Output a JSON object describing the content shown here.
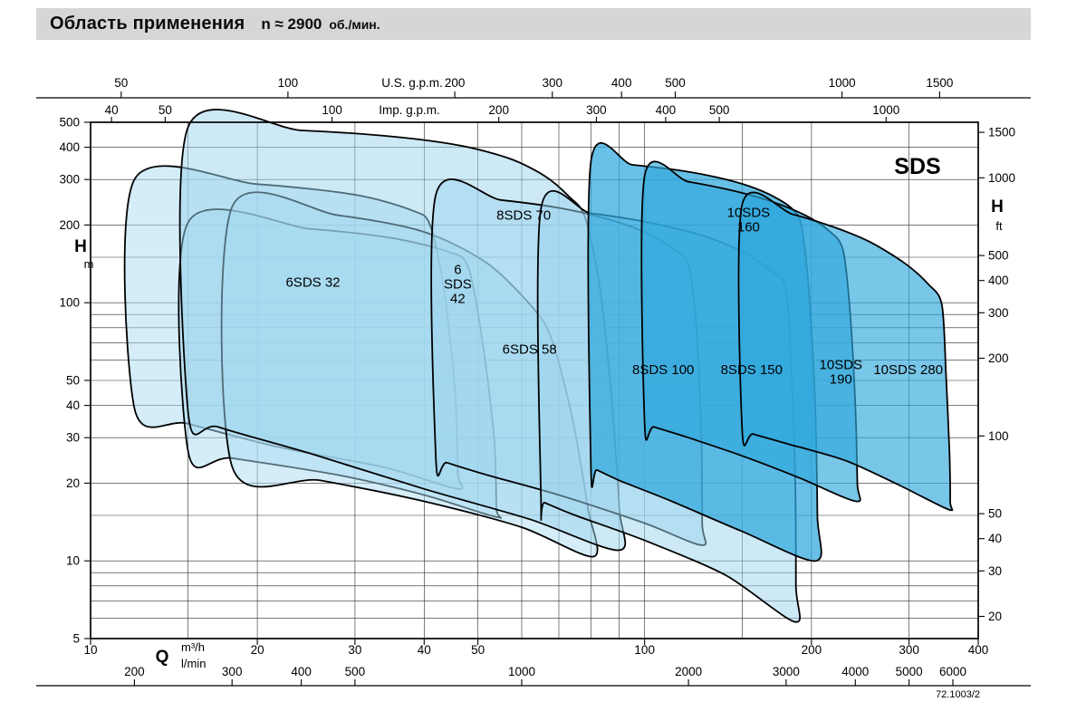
{
  "header": {
    "title": "Область применения",
    "speed": "n ≈ 2900",
    "unit": "об./мин."
  },
  "footer": {
    "note": "72.1003/2"
  },
  "chart_data": {
    "type": "area",
    "title": "Область применения SDS, n ≈ 2900 об./мин.",
    "family_label": "SDS",
    "scale": "log-log",
    "outline_color": "#000000",
    "x_axis": {
      "quantity": "Q",
      "primary_unit": "m³/h",
      "secondary_unit": "l/min",
      "range_m3h": [
        10,
        400
      ],
      "ticks_m3h": [
        10,
        20,
        30,
        40,
        50,
        100,
        200,
        300,
        400
      ],
      "ticks_lmin": [
        200,
        300,
        400,
        500,
        1000,
        2000,
        3000,
        4000,
        5000,
        6000
      ],
      "top_scales": {
        "us_gpm": {
          "title": "U.S. g.p.m.",
          "ticks": [
            50,
            100,
            200,
            300,
            400,
            500,
            1000,
            1500
          ]
        },
        "imp_gpm": {
          "title": "Imp. g.p.m.",
          "ticks": [
            40,
            50,
            100,
            200,
            300,
            400,
            500,
            1000
          ]
        }
      }
    },
    "y_axis": {
      "quantity": "H",
      "primary_unit": "m",
      "secondary_unit": "ft",
      "range_m": [
        5,
        500
      ],
      "ticks_m": [
        5,
        10,
        20,
        30,
        40,
        50,
        100,
        200,
        300,
        400,
        500
      ],
      "ticks_ft": [
        20,
        30,
        40,
        50,
        100,
        200,
        300,
        400,
        500,
        1000,
        1500
      ]
    },
    "grid": {
      "q_lines": [
        10,
        15,
        20,
        30,
        40,
        50,
        60,
        70,
        80,
        90,
        100,
        150,
        200,
        300,
        400
      ],
      "h_lines": [
        5,
        6,
        7,
        8,
        9,
        10,
        15,
        20,
        30,
        40,
        50,
        60,
        70,
        80,
        90,
        100,
        150,
        200,
        300,
        400,
        500
      ]
    },
    "envelopes": [
      {
        "name": "6SDS 32",
        "label_lines": [
          "6SDS 32"
        ],
        "label_q": 25.2,
        "label_h": 120,
        "fill": "#a9dbf1",
        "fill_opacity": 0.5,
        "points": [
          [
            12,
            300
          ],
          [
            20,
            288
          ],
          [
            30,
            262
          ],
          [
            38,
            228
          ],
          [
            41,
            200
          ],
          [
            43.5,
            110
          ],
          [
            45.5,
            45
          ],
          [
            46,
            22
          ],
          [
            46,
            19
          ],
          [
            34,
            23
          ],
          [
            22,
            27.5
          ],
          [
            15,
            34
          ],
          [
            12,
            39
          ]
        ]
      },
      {
        "name": "6SDS 42",
        "label_lines": [
          "6",
          "SDS",
          "42"
        ],
        "label_q": 46,
        "label_h": 118,
        "fill": "#a9dbf1",
        "fill_opacity": 0.5,
        "points": [
          [
            15,
            205
          ],
          [
            25,
            193
          ],
          [
            35,
            178
          ],
          [
            44,
            158
          ],
          [
            48,
            138
          ],
          [
            51,
            70
          ],
          [
            53.5,
            30
          ],
          [
            54,
            16
          ],
          [
            54,
            14.8
          ],
          [
            40,
            18
          ],
          [
            28,
            21.5
          ],
          [
            18,
            25
          ],
          [
            15,
            26.5
          ]
        ]
      },
      {
        "name": "6SDS 58",
        "label_lines": [
          "6SDS 58"
        ],
        "label_q": 62,
        "label_h": 66,
        "fill": "#a9dbf1",
        "fill_opacity": 0.5,
        "points": [
          [
            18,
            235
          ],
          [
            28,
            218
          ],
          [
            40,
            188
          ],
          [
            52,
            142
          ],
          [
            63,
            95
          ],
          [
            68,
            72
          ],
          [
            74,
            36
          ],
          [
            79,
            16
          ],
          [
            81,
            10.4
          ],
          [
            60,
            13.5
          ],
          [
            40,
            17
          ],
          [
            26,
            20.5
          ],
          [
            18,
            23.2
          ]
        ]
      },
      {
        "name": "8SDS 70",
        "label_lines": [
          "8SDS 70"
        ],
        "label_q": 60.5,
        "label_h": 218,
        "fill": "#9bd4ee",
        "fill_opacity": 0.5,
        "points": [
          [
            15,
            480
          ],
          [
            24,
            465
          ],
          [
            34,
            443
          ],
          [
            46,
            408
          ],
          [
            57,
            362
          ],
          [
            66,
            310
          ],
          [
            73,
            258
          ],
          [
            78,
            215
          ],
          [
            83,
            115
          ],
          [
            87,
            45
          ],
          [
            90,
            16
          ],
          [
            90,
            11
          ],
          [
            62,
            14.5
          ],
          [
            40,
            19
          ],
          [
            25,
            26
          ],
          [
            17,
            33
          ],
          [
            15,
            37.5
          ]
        ]
      },
      {
        "name": "8SDS 100",
        "label_lines": [
          "8SDS 100"
        ],
        "label_q": 108,
        "label_h": 55,
        "fill": "#9bd4ee",
        "fill_opacity": 0.5,
        "points": [
          [
            42,
            262
          ],
          [
            55,
            250
          ],
          [
            70,
            233
          ],
          [
            85,
            212
          ],
          [
            100,
            188
          ],
          [
            112,
            163
          ],
          [
            120,
            140
          ],
          [
            124,
            80
          ],
          [
            126.5,
            32
          ],
          [
            127,
            14
          ],
          [
            127,
            11.5
          ],
          [
            100,
            14
          ],
          [
            70,
            18
          ],
          [
            52,
            21.5
          ],
          [
            44,
            24
          ],
          [
            42,
            25
          ]
        ]
      },
      {
        "name": "8SDS 150",
        "label_lines": [
          "8SDS 150"
        ],
        "label_q": 156,
        "label_h": 55,
        "fill": "#9bd4ee",
        "fill_opacity": 0.5,
        "points": [
          [
            65,
            232
          ],
          [
            80,
            222
          ],
          [
            100,
            206
          ],
          [
            125,
            184
          ],
          [
            150,
            158
          ],
          [
            170,
            132
          ],
          [
            180,
            112
          ],
          [
            184,
            55
          ],
          [
            187,
            20
          ],
          [
            187.5,
            8
          ],
          [
            187,
            5.8
          ],
          [
            140,
            8.8
          ],
          [
            100,
            12
          ],
          [
            75,
            15
          ],
          [
            66,
            16.8
          ],
          [
            65,
            17
          ]
        ]
      },
      {
        "name": "10SDS 160",
        "label_lines": [
          "10SDS",
          "160"
        ],
        "label_q": 154,
        "label_h": 210,
        "fill": "#2fa8dc",
        "fill_opacity": 0.72,
        "points": [
          [
            80,
            352
          ],
          [
            95,
            342
          ],
          [
            115,
            326
          ],
          [
            135,
            306
          ],
          [
            155,
            282
          ],
          [
            172,
            256
          ],
          [
            185,
            230
          ],
          [
            192,
            198
          ],
          [
            198,
            110
          ],
          [
            203,
            42
          ],
          [
            205,
            15
          ],
          [
            204,
            10
          ],
          [
            150,
            13
          ],
          [
            112,
            17
          ],
          [
            90,
            20.5
          ],
          [
            82,
            22.5
          ],
          [
            80,
            23
          ]
        ]
      },
      {
        "name": "10SDS 190",
        "label_lines": [
          "10SDS",
          "190"
        ],
        "label_q": 226,
        "label_h": 54,
        "fill": "#2fa8dc",
        "fill_opacity": 0.65,
        "points": [
          [
            100,
            310
          ],
          [
            120,
            294
          ],
          [
            145,
            271
          ],
          [
            170,
            246
          ],
          [
            195,
            218
          ],
          [
            215,
            190
          ],
          [
            228,
            160
          ],
          [
            235,
            90
          ],
          [
            240,
            40
          ],
          [
            242,
            20
          ],
          [
            241,
            17
          ],
          [
            190,
            21
          ],
          [
            150,
            25.5
          ],
          [
            120,
            30
          ],
          [
            104,
            33
          ],
          [
            100,
            34
          ]
        ]
      },
      {
        "name": "10SDS 280",
        "label_lines": [
          "10SDS 280"
        ],
        "label_q": 299,
        "label_h": 55,
        "fill": "#2fa8dc",
        "fill_opacity": 0.65,
        "points": [
          [
            150,
            240
          ],
          [
            185,
            220
          ],
          [
            220,
            196
          ],
          [
            255,
            172
          ],
          [
            295,
            142
          ],
          [
            325,
            118
          ],
          [
            344,
            98
          ],
          [
            350,
            52
          ],
          [
            355,
            26
          ],
          [
            356,
            17
          ],
          [
            354,
            15.8
          ],
          [
            290,
            19.5
          ],
          [
            230,
            24.5
          ],
          [
            180,
            28.5
          ],
          [
            157,
            31
          ],
          [
            150,
            32
          ]
        ]
      }
    ]
  }
}
